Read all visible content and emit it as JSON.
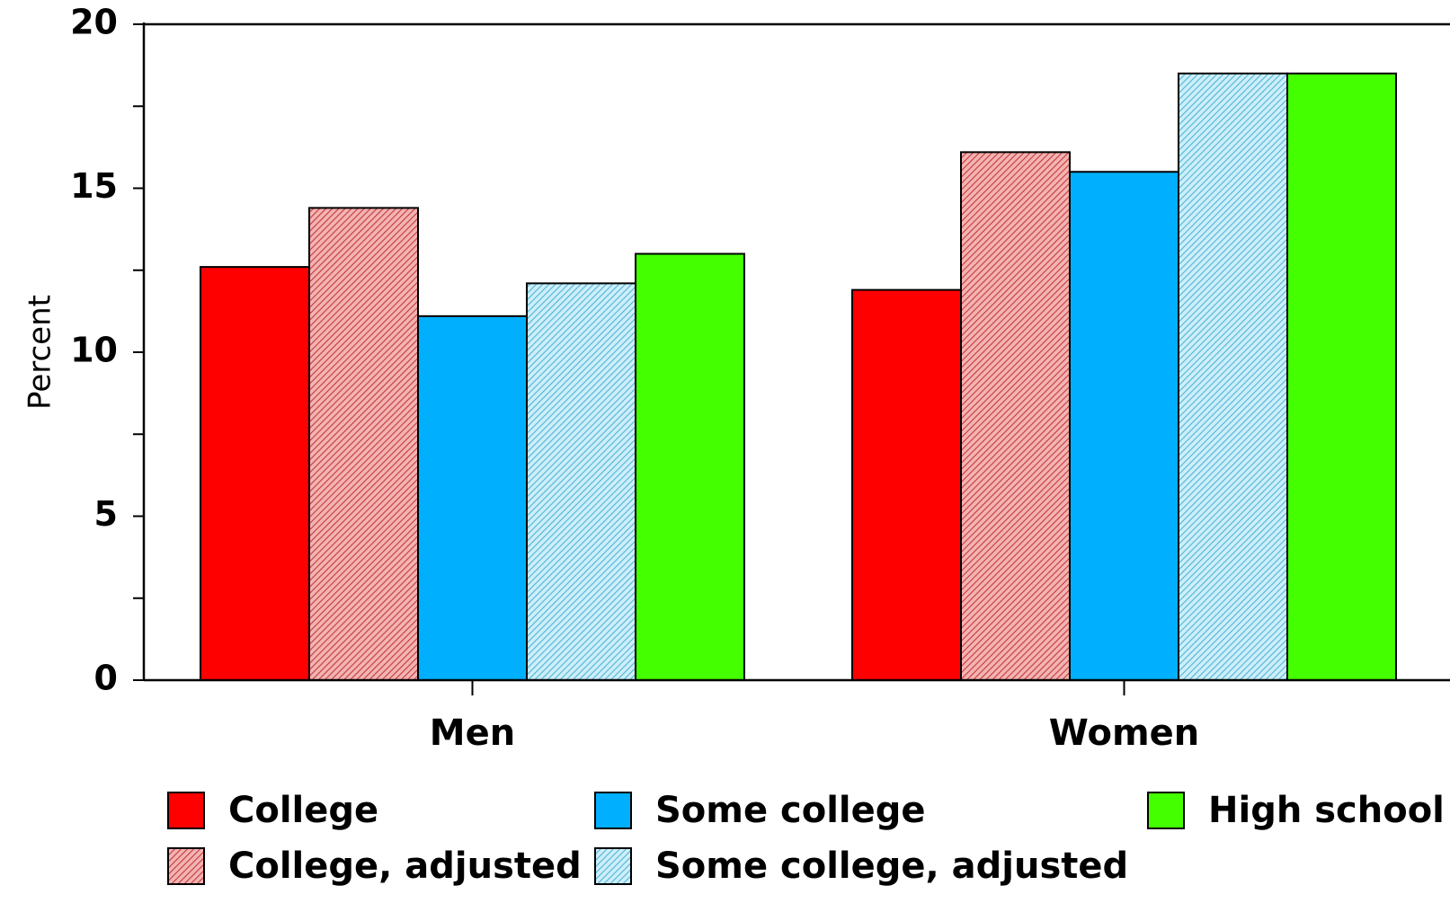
{
  "chart_data": {
    "type": "bar",
    "title": "",
    "xlabel": "",
    "ylabel": "Percent",
    "categories": [
      "Men",
      "Women"
    ],
    "ylim": [
      0,
      20
    ],
    "yticks": [
      0,
      5,
      10,
      15,
      20
    ],
    "grid": false,
    "legend_position": "bottom",
    "series": [
      {
        "name": "College",
        "values": [
          12.6,
          11.9
        ],
        "color": "#ff0000",
        "pattern": "solid"
      },
      {
        "name": "College, adjusted",
        "values": [
          14.4,
          16.1
        ],
        "color": "#e58383",
        "pattern": "hatched"
      },
      {
        "name": "Some college",
        "values": [
          11.1,
          15.5
        ],
        "color": "#00b0ff",
        "pattern": "solid"
      },
      {
        "name": "Some college, adjusted",
        "values": [
          12.1,
          18.5
        ],
        "color": "#80d4f0",
        "pattern": "hatched"
      },
      {
        "name": "High school",
        "values": [
          13.0,
          18.5
        ],
        "color": "#44ff00",
        "pattern": "solid"
      }
    ]
  }
}
